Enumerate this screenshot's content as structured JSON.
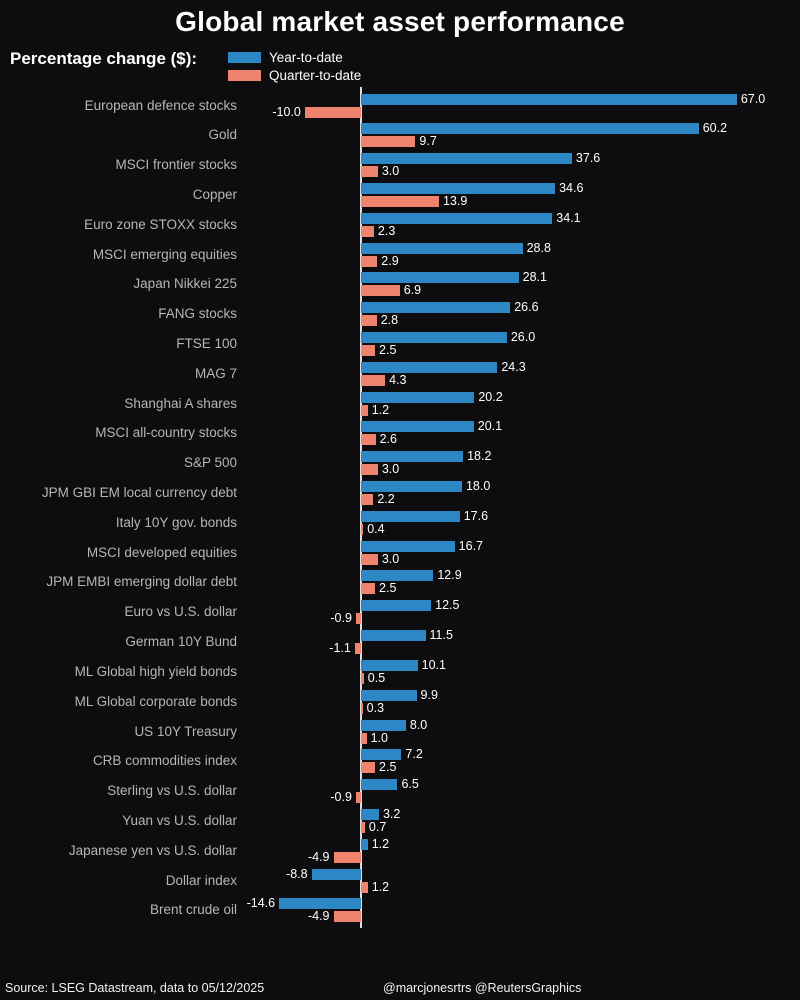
{
  "title": "Global market asset performance",
  "legend": {
    "label": "Percentage change ($):",
    "items": [
      {
        "name": "Year-to-date",
        "color": "#2d87c5"
      },
      {
        "name": "Quarter-to-date",
        "color": "#f0836e"
      }
    ],
    "position": "top-left"
  },
  "chart_data": {
    "type": "bar",
    "orientation": "horizontal",
    "title": "Global market asset performance",
    "xlabel": "Percentage change ($)",
    "ylabel": "",
    "xlim": [
      -16,
      70
    ],
    "grid": false,
    "zero_line": true,
    "value_labels": true,
    "value_format": "0.1f",
    "legend_position": "top-left",
    "categories": [
      "European defence stocks",
      "Gold",
      "MSCI frontier stocks",
      "Copper",
      "Euro zone STOXX stocks",
      "MSCI emerging equities",
      "Japan Nikkei 225",
      "FANG stocks",
      "FTSE 100",
      "MAG 7",
      "Shanghai A shares",
      "MSCI all-country stocks",
      "S&P 500",
      "JPM GBI EM local currency debt",
      "Italy 10Y gov. bonds",
      "MSCI developed equities",
      "JPM EMBI emerging dollar debt",
      "Euro vs U.S. dollar",
      "German 10Y Bund",
      "ML Global high yield bonds",
      "ML Global corporate bonds",
      "US 10Y Treasury",
      "CRB commodities index",
      "Sterling vs U.S. dollar",
      "Yuan vs U.S. dollar",
      "Japanese yen vs U.S. dollar",
      "Dollar index",
      "Brent crude oil"
    ],
    "series": [
      {
        "name": "Year-to-date",
        "color": "#2d87c5",
        "values": [
          67.0,
          60.2,
          37.6,
          34.6,
          34.1,
          28.8,
          28.1,
          26.6,
          26.0,
          24.3,
          20.2,
          20.1,
          18.2,
          18.0,
          17.6,
          16.7,
          12.9,
          12.5,
          11.5,
          10.1,
          9.9,
          8.0,
          7.2,
          6.5,
          3.2,
          1.2,
          -8.8,
          -14.6
        ]
      },
      {
        "name": "Quarter-to-date",
        "color": "#f0836e",
        "values": [
          -10.0,
          9.7,
          3.0,
          13.9,
          2.3,
          2.9,
          6.9,
          2.8,
          2.5,
          4.3,
          1.2,
          2.6,
          3.0,
          2.2,
          0.4,
          3.0,
          2.5,
          -0.9,
          -1.1,
          0.5,
          0.3,
          1.0,
          2.5,
          -0.9,
          0.7,
          -4.9,
          1.2,
          -4.9
        ]
      }
    ]
  },
  "footer": {
    "source": "Source: LSEG Datastream, data to 05/12/2025",
    "credits": "@marcjonesrtrs @ReutersGraphics"
  },
  "colors": {
    "background": "#0d0d0f",
    "ytd_bar": "#2d87c5",
    "qtd_bar": "#f0836e",
    "category_label": "#b4b6b8",
    "value_label": "#ffffff",
    "axis_line": "#dcdcdc",
    "title_text": "#ffffff",
    "footer_text": "#f2f2f2"
  }
}
